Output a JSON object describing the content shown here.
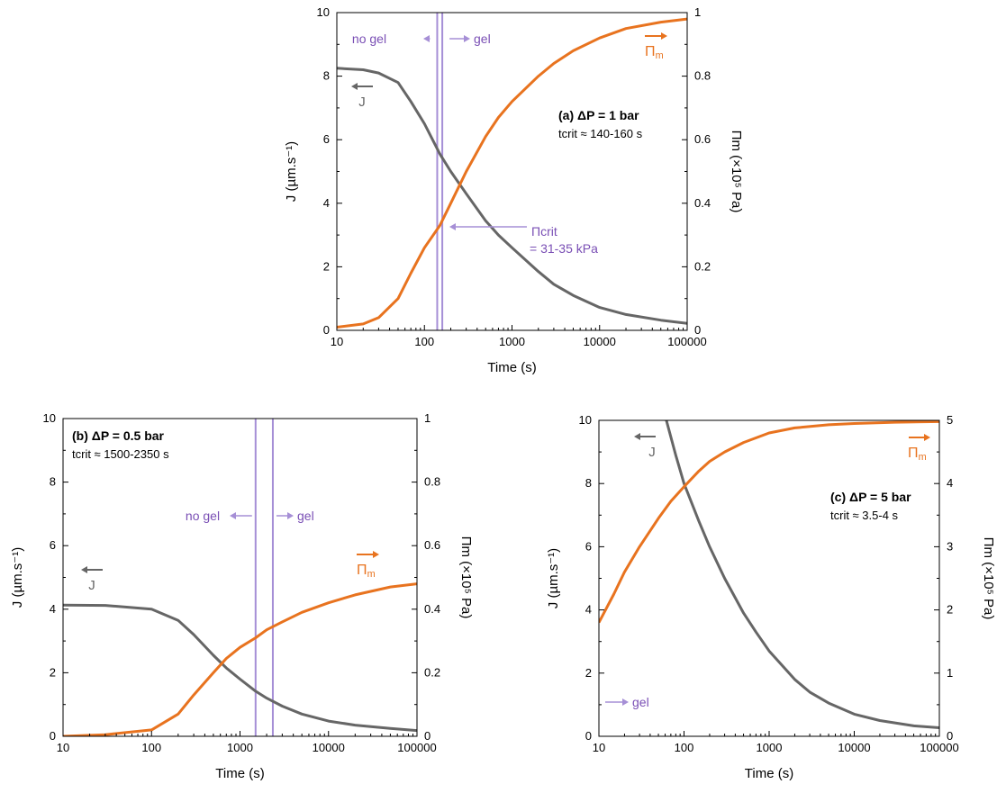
{
  "chart_data": [
    {
      "id": "a",
      "type": "line",
      "x_scale": "log",
      "xlim": [
        10,
        100000
      ],
      "ylim": [
        0,
        10
      ],
      "y2lim": [
        0,
        1
      ],
      "x_ticks": [
        "10",
        "100",
        "1000",
        "10000",
        "100000"
      ],
      "y_ticks": [
        "0",
        "2",
        "4",
        "6",
        "8",
        "10"
      ],
      "y2_ticks": [
        "0",
        "0.2",
        "0.4",
        "0.6",
        "0.8",
        "1"
      ],
      "xlabel": "Time (s)",
      "ylabel": "J (µm.s⁻¹)",
      "y2label": "Πm (×10⁵ Pa)",
      "series": [
        {
          "name": "J",
          "axis": "left",
          "color": "#666666",
          "x": [
            10,
            20,
            30,
            50,
            70,
            100,
            150,
            200,
            300,
            500,
            700,
            1000,
            2000,
            3000,
            5000,
            10000,
            20000,
            50000,
            100000
          ],
          "y": [
            8.25,
            8.2,
            8.1,
            7.8,
            7.2,
            6.5,
            5.55,
            5.0,
            4.3,
            3.45,
            3.0,
            2.6,
            1.85,
            1.45,
            1.1,
            0.72,
            0.5,
            0.32,
            0.22
          ]
        },
        {
          "name": "Πm",
          "axis": "right",
          "color": "#e8731f",
          "x": [
            10,
            20,
            30,
            50,
            70,
            100,
            150,
            200,
            300,
            500,
            700,
            1000,
            2000,
            3000,
            5000,
            10000,
            20000,
            50000,
            100000
          ],
          "y": [
            0.01,
            0.02,
            0.04,
            0.1,
            0.18,
            0.26,
            0.33,
            0.4,
            0.5,
            0.61,
            0.67,
            0.72,
            0.8,
            0.84,
            0.88,
            0.92,
            0.95,
            0.97,
            0.98
          ]
        }
      ],
      "critical_lines_x": [
        140,
        160
      ],
      "annotations": {
        "no_gel": "no gel",
        "gel": "gel",
        "j_label": "J",
        "pi_label": "Πm",
        "title": "(a) ΔP = 1 bar",
        "tcrit": "tcrit ≈ 140-160 s",
        "pcrit_1": "Πcrit",
        "pcrit_2": "= 31-35 kPa"
      }
    },
    {
      "id": "b",
      "type": "line",
      "x_scale": "log",
      "xlim": [
        10,
        100000
      ],
      "ylim": [
        0,
        10
      ],
      "y2lim": [
        0,
        1
      ],
      "x_ticks": [
        "10",
        "100",
        "1000",
        "10000",
        "100000"
      ],
      "y_ticks": [
        "0",
        "2",
        "4",
        "6",
        "8",
        "10"
      ],
      "y2_ticks": [
        "0",
        "0.2",
        "0.4",
        "0.6",
        "0.8",
        "1"
      ],
      "xlabel": "Time (s)",
      "ylabel": "J (µm.s⁻¹)",
      "y2label": "Πm (×10⁵ Pa)",
      "series": [
        {
          "name": "J",
          "axis": "left",
          "color": "#666666",
          "x": [
            10,
            30,
            100,
            200,
            300,
            500,
            700,
            1000,
            1500,
            2000,
            3000,
            5000,
            10000,
            20000,
            50000,
            100000
          ],
          "y": [
            4.13,
            4.12,
            4.0,
            3.65,
            3.2,
            2.55,
            2.15,
            1.8,
            1.42,
            1.2,
            0.95,
            0.7,
            0.48,
            0.35,
            0.25,
            0.18
          ]
        },
        {
          "name": "Πm",
          "axis": "right",
          "color": "#e8731f",
          "x": [
            10,
            30,
            100,
            200,
            300,
            500,
            700,
            1000,
            1500,
            2000,
            3000,
            5000,
            10000,
            20000,
            50000,
            100000
          ],
          "y": [
            0.0,
            0.005,
            0.02,
            0.07,
            0.13,
            0.2,
            0.245,
            0.28,
            0.31,
            0.335,
            0.36,
            0.39,
            0.42,
            0.445,
            0.47,
            0.48
          ]
        }
      ],
      "critical_lines_x": [
        1500,
        2350
      ],
      "annotations": {
        "no_gel": "no gel",
        "gel": "gel",
        "j_label": "J",
        "pi_label": "Πm",
        "title": "(b) ΔP = 0.5 bar",
        "tcrit": "tcrit ≈ 1500-2350 s"
      }
    },
    {
      "id": "c",
      "type": "line",
      "x_scale": "log",
      "xlim": [
        10,
        100000
      ],
      "ylim": [
        0,
        10
      ],
      "y2lim": [
        0,
        5
      ],
      "x_ticks": [
        "10",
        "100",
        "1000",
        "10000",
        "100000"
      ],
      "y_ticks": [
        "0",
        "2",
        "4",
        "6",
        "8",
        "10"
      ],
      "y2_ticks": [
        "0",
        "1",
        "2",
        "3",
        "4",
        "5"
      ],
      "xlabel": "Time (s)",
      "ylabel": "J (µm.s⁻¹)",
      "y2label": "Πm (×10⁵ Pa)",
      "series": [
        {
          "name": "J",
          "axis": "left",
          "color": "#666666",
          "x": [
            62,
            80,
            100,
            150,
            200,
            300,
            500,
            700,
            1000,
            2000,
            3000,
            5000,
            10000,
            20000,
            50000,
            100000
          ],
          "y": [
            10.0,
            8.9,
            8.0,
            6.8,
            6.0,
            5.0,
            3.9,
            3.3,
            2.7,
            1.8,
            1.4,
            1.05,
            0.7,
            0.5,
            0.33,
            0.27
          ]
        },
        {
          "name": "Πm",
          "axis": "right",
          "color": "#e8731f",
          "x": [
            10,
            15,
            20,
            30,
            50,
            70,
            100,
            150,
            200,
            300,
            500,
            1000,
            2000,
            5000,
            10000,
            30000,
            100000
          ],
          "y": [
            1.8,
            2.25,
            2.6,
            3.0,
            3.45,
            3.72,
            3.95,
            4.2,
            4.35,
            4.5,
            4.65,
            4.8,
            4.88,
            4.93,
            4.95,
            4.97,
            4.98
          ]
        }
      ],
      "critical_lines_x": [],
      "annotations": {
        "gel": "gel",
        "j_label": "J",
        "pi_label": "Πm",
        "title": "(c) ΔP = 5 bar",
        "tcrit": "tcrit ≈ 3.5-4 s"
      }
    }
  ]
}
